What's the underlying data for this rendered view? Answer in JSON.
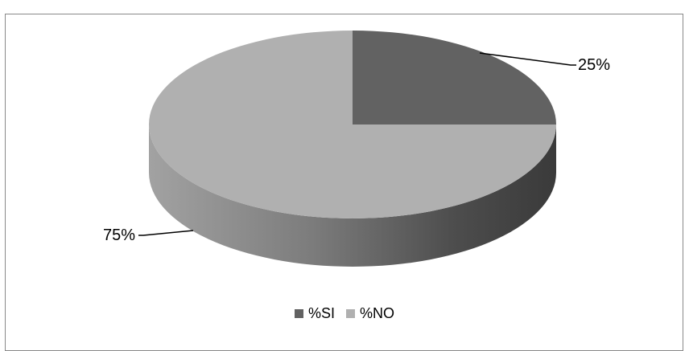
{
  "chart_data": {
    "type": "pie",
    "title": "",
    "categories": [
      "%SI",
      "%NO"
    ],
    "values": [
      25,
      75
    ],
    "labels": [
      "25%",
      "75%"
    ],
    "colors": [
      "#626262",
      "#b0b0b0"
    ],
    "legend_position": "bottom",
    "three_d": true
  }
}
